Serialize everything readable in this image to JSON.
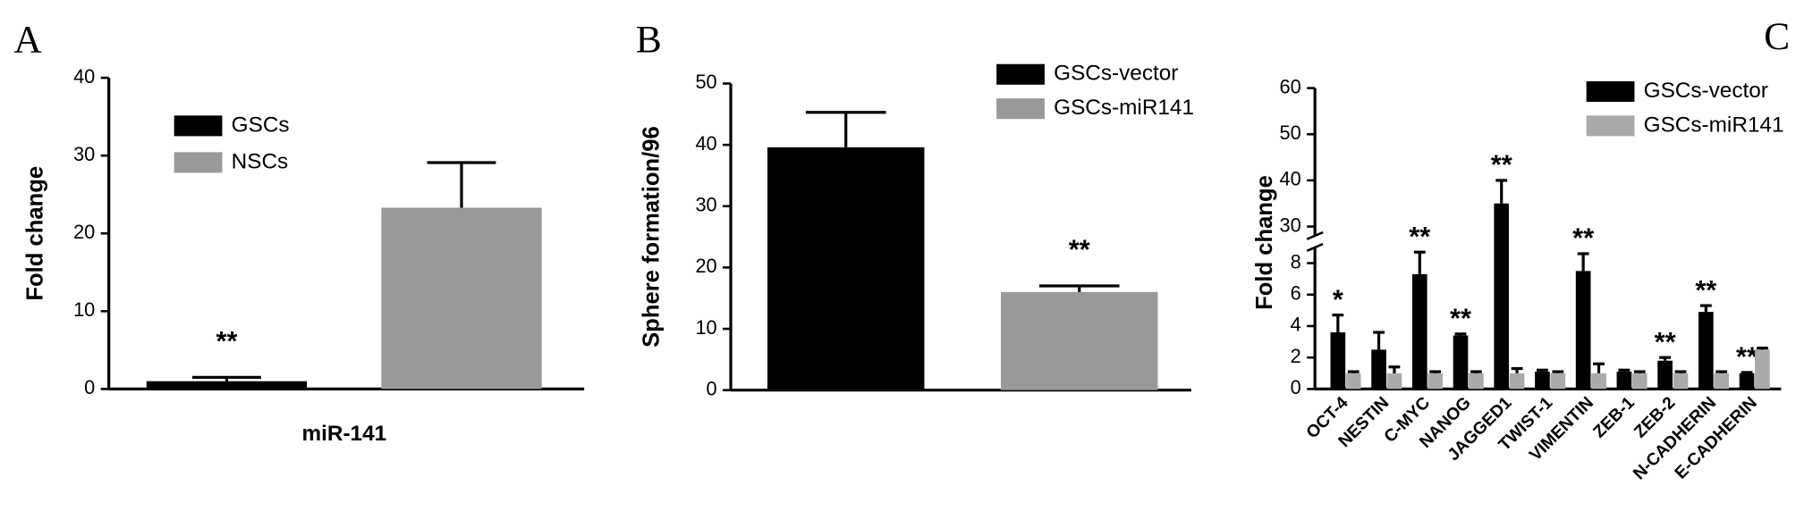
{
  "chart_data": [
    {
      "type": "bar",
      "panel": "A",
      "ylabel": "Fold change",
      "categories": [
        "miR-141"
      ],
      "series": [
        {
          "name": "GSCs",
          "color": "#000000",
          "values": [
            1.0
          ],
          "errors": [
            0.5
          ],
          "annotations": [
            "**"
          ]
        },
        {
          "name": "NSCs",
          "color": "#999999",
          "values": [
            23.3
          ],
          "errors": [
            5.8
          ],
          "annotations": [
            null
          ]
        }
      ],
      "ylim": [
        0,
        40
      ],
      "yticks": [
        0,
        10,
        20,
        30,
        40
      ]
    },
    {
      "type": "bar",
      "panel": "B",
      "ylabel": "Sphere formation/96",
      "categories": [
        null
      ],
      "series": [
        {
          "name": "GSCs-vector",
          "color": "#000000",
          "values": [
            39.6
          ],
          "errors": [
            5.7
          ],
          "annotations": [
            null
          ]
        },
        {
          "name": "GSCs-miR141",
          "color": "#999999",
          "values": [
            16.0
          ],
          "errors": [
            1.0
          ],
          "annotations": [
            "**"
          ]
        }
      ],
      "ylim": [
        0,
        50
      ],
      "yticks": [
        0,
        10,
        20,
        30,
        40,
        50
      ]
    },
    {
      "type": "bar",
      "panel": "C",
      "ylabel": "Fold change",
      "categories": [
        "OCT-4",
        "NESTIN",
        "C-MYC",
        "NANOG",
        "JAGGED1",
        "TWIST-1",
        "VIMENTIN",
        "ZEB-1",
        "ZEB-2",
        "N-CADHERIN",
        "E-CADHERIN"
      ],
      "series": [
        {
          "name": "GSCs-vector",
          "color": "#000000",
          "values": [
            3.6,
            2.5,
            7.3,
            3.4,
            35,
            1.1,
            7.5,
            1.1,
            1.8,
            4.9,
            1.0
          ],
          "errors": [
            1.1,
            1.1,
            1.4,
            0.1,
            5,
            0.1,
            1.1,
            0.1,
            0.2,
            0.4,
            0.05
          ],
          "annotations": [
            "*",
            null,
            "**",
            "**",
            "**",
            null,
            "**",
            null,
            "**",
            "**",
            "**"
          ]
        },
        {
          "name": "GSCs-miR141",
          "color": "#aaaaaa",
          "values": [
            1.0,
            1.0,
            1.0,
            1.0,
            1.0,
            1.0,
            1.0,
            1.0,
            1.0,
            1.0,
            2.5
          ],
          "errors": [
            0.1,
            0.4,
            0.1,
            0.1,
            0.3,
            0.1,
            0.6,
            0.1,
            0.1,
            0.1,
            0.1
          ],
          "annotations": [
            null,
            null,
            null,
            null,
            null,
            null,
            null,
            null,
            null,
            null,
            null
          ]
        }
      ],
      "segments": [
        {
          "ylim": [
            0,
            9
          ],
          "yticks": [
            0,
            2,
            4,
            6,
            8
          ]
        },
        {
          "ylim": [
            28,
            60
          ],
          "yticks": [
            30,
            40,
            50,
            60
          ]
        }
      ]
    }
  ]
}
